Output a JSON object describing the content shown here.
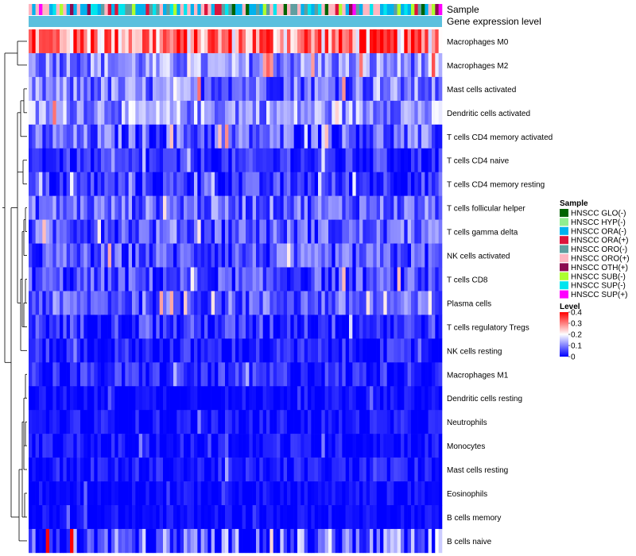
{
  "chart_data": {
    "type": "heatmap",
    "annotation_labels": [
      "Sample",
      "Gene expression level"
    ],
    "rows": [
      {
        "label": "Macrophages M0",
        "mean": 0.3,
        "spread": 0.14
      },
      {
        "label": "Macrophages M2",
        "mean": 0.11,
        "spread": 0.08
      },
      {
        "label": "Mast cells activated",
        "mean": 0.09,
        "spread": 0.08
      },
      {
        "label": "Dendritic cells activated",
        "mean": 0.12,
        "spread": 0.08
      },
      {
        "label": "T cells CD4 memory activated",
        "mean": 0.07,
        "spread": 0.08
      },
      {
        "label": "T cells CD4 naive",
        "mean": 0.03,
        "spread": 0.05
      },
      {
        "label": "T cells CD4 memory resting",
        "mean": 0.04,
        "spread": 0.06
      },
      {
        "label": "T cells follicular helper",
        "mean": 0.08,
        "spread": 0.07
      },
      {
        "label": "T cells gamma delta",
        "mean": 0.07,
        "spread": 0.07
      },
      {
        "label": "NK cells activated",
        "mean": 0.06,
        "spread": 0.07
      },
      {
        "label": "T cells CD8",
        "mean": 0.05,
        "spread": 0.07
      },
      {
        "label": "Plasma cells",
        "mean": 0.07,
        "spread": 0.07
      },
      {
        "label": "T cells regulatory  Tregs",
        "mean": 0.04,
        "spread": 0.06
      },
      {
        "label": "NK cells resting",
        "mean": 0.02,
        "spread": 0.05
      },
      {
        "label": "Macrophages M1",
        "mean": 0.03,
        "spread": 0.05
      },
      {
        "label": "Dendritic cells resting",
        "mean": 0.005,
        "spread": 0.03
      },
      {
        "label": "Neutrophils",
        "mean": 0.01,
        "spread": 0.04
      },
      {
        "label": "Monocytes",
        "mean": 0.01,
        "spread": 0.04
      },
      {
        "label": "Mast cells resting",
        "mean": 0.015,
        "spread": 0.04
      },
      {
        "label": "Eosinophils",
        "mean": 0.005,
        "spread": 0.03
      },
      {
        "label": "B cells memory",
        "mean": 0.005,
        "spread": 0.03
      },
      {
        "label": "B cells naive",
        "mean": 0.04,
        "spread": 0.14
      }
    ],
    "n_samples": 120,
    "color_scale": {
      "domain": [
        0,
        0.2,
        0.4
      ],
      "colors": [
        "#0000ff",
        "#ffffff",
        "#ff0000"
      ]
    },
    "legend_sample": {
      "title": "Sample",
      "items": [
        {
          "label": "HNSCC GLO(-)",
          "color": "#006400"
        },
        {
          "label": "HNSCC HYP(-)",
          "color": "#90ee90"
        },
        {
          "label": "HNSCC ORA(-)",
          "color": "#00b2ee"
        },
        {
          "label": "HNSCC ORA(+)",
          "color": "#dc143c"
        },
        {
          "label": "HNSCC ORO(-)",
          "color": "#5f9ea0"
        },
        {
          "label": "HNSCC ORO(+)",
          "color": "#ffb6c1"
        },
        {
          "label": "HNSCC OTH(+)",
          "color": "#8b0a50"
        },
        {
          "label": "HNSCC SUB(-)",
          "color": "#adff2f"
        },
        {
          "label": "HNSCC SUP(-)",
          "color": "#00e5ee"
        },
        {
          "label": "HNSCC SUP(+)",
          "color": "#ff00ff"
        }
      ]
    },
    "legend_level": {
      "title": "Level",
      "ticks": [
        "0.4",
        "0.3",
        "0.2",
        "0.1",
        "0"
      ],
      "tick_values": [
        0.4,
        0.3,
        0.2,
        0.1,
        0
      ]
    },
    "gene_expression_color": "#5bc0de"
  }
}
